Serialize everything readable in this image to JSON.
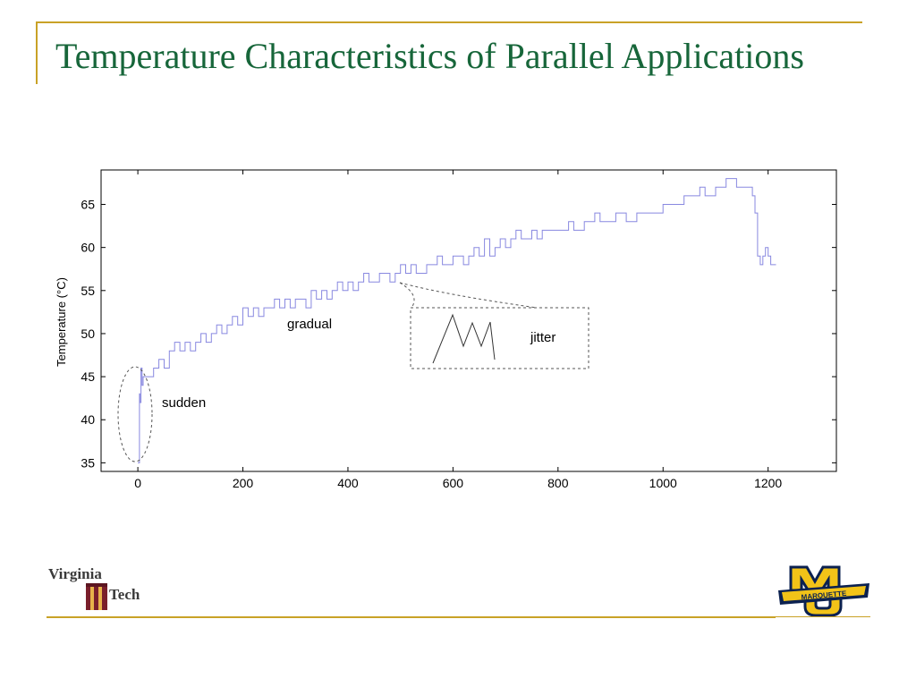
{
  "slide": {
    "title": "Temperature Characteristics of Parallel Applications"
  },
  "logos": {
    "left": "Virginia Tech",
    "right": "MARQUETTE"
  },
  "colors": {
    "title": "#17663a",
    "rule": "#c9a227",
    "series": "#8888e0",
    "vt_maroon": "#7a1f2b",
    "mu_gold": "#f2c318",
    "mu_navy": "#0b2150"
  },
  "chart_data": {
    "type": "line",
    "title": "",
    "xlabel": "",
    "ylabel": "Temperature (°C)",
    "xlim": [
      -70,
      1330
    ],
    "ylim": [
      34,
      69
    ],
    "xticks": [
      0,
      200,
      400,
      600,
      800,
      1000,
      1200
    ],
    "yticks": [
      35,
      40,
      45,
      50,
      55,
      60,
      65
    ],
    "grid": false,
    "series": [
      {
        "color": "#8888e0",
        "x": [
          0,
          2,
          3,
          4,
          6,
          8,
          10,
          20,
          30,
          40,
          50,
          60,
          70,
          80,
          90,
          100,
          110,
          120,
          130,
          140,
          150,
          160,
          170,
          180,
          190,
          200,
          210,
          220,
          230,
          240,
          250,
          260,
          270,
          280,
          290,
          300,
          310,
          320,
          330,
          340,
          350,
          360,
          370,
          380,
          390,
          400,
          410,
          420,
          430,
          440,
          450,
          460,
          470,
          480,
          490,
          500,
          510,
          520,
          530,
          540,
          550,
          560,
          570,
          580,
          590,
          600,
          610,
          620,
          630,
          640,
          650,
          660,
          670,
          680,
          690,
          700,
          710,
          720,
          730,
          740,
          750,
          760,
          770,
          780,
          790,
          800,
          810,
          820,
          830,
          840,
          850,
          860,
          870,
          880,
          890,
          900,
          910,
          920,
          930,
          940,
          950,
          960,
          970,
          980,
          990,
          1000,
          1010,
          1020,
          1030,
          1040,
          1050,
          1060,
          1070,
          1080,
          1090,
          1100,
          1110,
          1120,
          1130,
          1140,
          1150,
          1160,
          1170,
          1175,
          1180,
          1185,
          1190,
          1195,
          1200,
          1205,
          1210,
          1215
        ],
        "y": [
          35,
          35,
          43,
          42,
          46,
          44,
          45,
          45,
          46,
          47,
          46,
          48,
          49,
          48,
          49,
          48,
          49,
          50,
          49,
          50,
          51,
          50,
          51,
          52,
          51,
          53,
          52,
          53,
          52,
          53,
          53,
          54,
          53,
          54,
          53,
          54,
          54,
          53,
          55,
          54,
          55,
          54,
          55,
          56,
          55,
          56,
          55,
          56,
          57,
          56,
          56,
          57,
          57,
          56,
          57,
          58,
          57,
          58,
          57,
          57,
          58,
          58,
          59,
          58,
          58,
          59,
          59,
          58,
          59,
          60,
          59,
          61,
          59,
          60,
          61,
          60,
          61,
          62,
          61,
          61,
          62,
          61,
          62,
          62,
          62,
          62,
          62,
          63,
          62,
          62,
          63,
          63,
          64,
          63,
          63,
          63,
          64,
          64,
          63,
          63,
          64,
          64,
          64,
          64,
          64,
          65,
          65,
          65,
          65,
          66,
          66,
          66,
          67,
          66,
          66,
          67,
          67,
          68,
          68,
          67,
          67,
          67,
          66,
          64,
          59,
          58,
          59,
          60,
          59,
          58,
          58,
          58
        ]
      }
    ],
    "annotations": [
      {
        "text": "sudden",
        "x": 50,
        "y": 42
      },
      {
        "text": "gradual",
        "x": 285,
        "y": 51.6
      },
      {
        "text": "jitter",
        "x": 750,
        "y": 49.5
      }
    ]
  }
}
